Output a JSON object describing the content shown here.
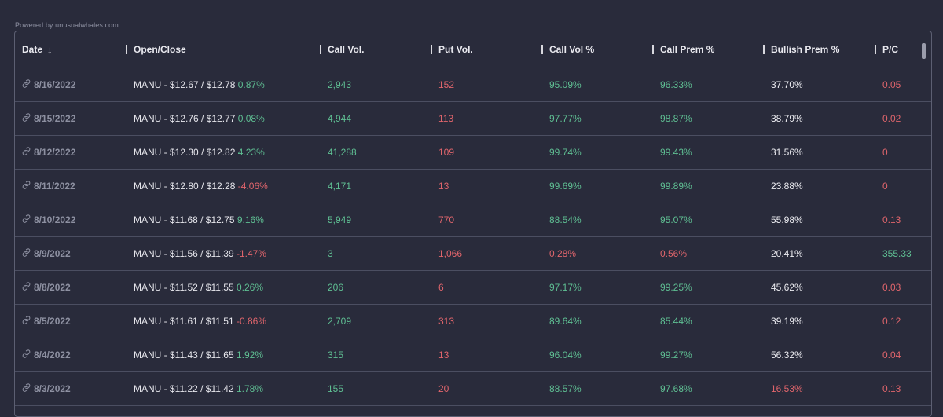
{
  "powered_by": "Powered by unusualwhales.com",
  "columns": [
    {
      "key": "date",
      "label": "Date"
    },
    {
      "key": "open_close",
      "label": "Open/Close"
    },
    {
      "key": "call_vol",
      "label": "Call Vol."
    },
    {
      "key": "put_vol",
      "label": "Put Vol."
    },
    {
      "key": "call_vol_pct",
      "label": "Call Vol %"
    },
    {
      "key": "call_prem_pct",
      "label": "Call Prem %"
    },
    {
      "key": "bullish_prem_pct",
      "label": "Bullish Prem %"
    },
    {
      "key": "pc",
      "label": "P/C"
    }
  ],
  "colors": {
    "green": "#5fbf93",
    "red": "#e0656c",
    "white": "#ececf1"
  },
  "rows": [
    {
      "date": "8/16/2022",
      "oc": "MANU - $12.67 / $12.78",
      "chg": "0.87%",
      "chg_c": "green",
      "call_vol": "2,943",
      "put_vol": "152",
      "call_vol_pct": "95.09%",
      "cvp_c": "green",
      "call_prem_pct": "96.33%",
      "cpp_c": "green",
      "bullish": "37.70%",
      "bull_c": "white",
      "pc": "0.05",
      "pc_c": "red"
    },
    {
      "date": "8/15/2022",
      "oc": "MANU - $12.76 / $12.77",
      "chg": "0.08%",
      "chg_c": "green",
      "call_vol": "4,944",
      "put_vol": "113",
      "call_vol_pct": "97.77%",
      "cvp_c": "green",
      "call_prem_pct": "98.87%",
      "cpp_c": "green",
      "bullish": "38.79%",
      "bull_c": "white",
      "pc": "0.02",
      "pc_c": "red"
    },
    {
      "date": "8/12/2022",
      "oc": "MANU - $12.30 / $12.82",
      "chg": "4.23%",
      "chg_c": "green",
      "call_vol": "41,288",
      "put_vol": "109",
      "call_vol_pct": "99.74%",
      "cvp_c": "green",
      "call_prem_pct": "99.43%",
      "cpp_c": "green",
      "bullish": "31.56%",
      "bull_c": "white",
      "pc": "0",
      "pc_c": "red"
    },
    {
      "date": "8/11/2022",
      "oc": "MANU - $12.80 / $12.28",
      "chg": "-4.06%",
      "chg_c": "red",
      "call_vol": "4,171",
      "put_vol": "13",
      "call_vol_pct": "99.69%",
      "cvp_c": "green",
      "call_prem_pct": "99.89%",
      "cpp_c": "green",
      "bullish": "23.88%",
      "bull_c": "white",
      "pc": "0",
      "pc_c": "red"
    },
    {
      "date": "8/10/2022",
      "oc": "MANU - $11.68 / $12.75",
      "chg": "9.16%",
      "chg_c": "green",
      "call_vol": "5,949",
      "put_vol": "770",
      "call_vol_pct": "88.54%",
      "cvp_c": "green",
      "call_prem_pct": "95.07%",
      "cpp_c": "green",
      "bullish": "55.98%",
      "bull_c": "white",
      "pc": "0.13",
      "pc_c": "red"
    },
    {
      "date": "8/9/2022",
      "oc": "MANU - $11.56 / $11.39",
      "chg": "-1.47%",
      "chg_c": "red",
      "call_vol": "3",
      "put_vol": "1,066",
      "call_vol_pct": "0.28%",
      "cvp_c": "red",
      "call_prem_pct": "0.56%",
      "cpp_c": "red",
      "bullish": "20.41%",
      "bull_c": "white",
      "pc": "355.33",
      "pc_c": "green"
    },
    {
      "date": "8/8/2022",
      "oc": "MANU - $11.52 / $11.55",
      "chg": "0.26%",
      "chg_c": "green",
      "call_vol": "206",
      "put_vol": "6",
      "call_vol_pct": "97.17%",
      "cvp_c": "green",
      "call_prem_pct": "99.25%",
      "cpp_c": "green",
      "bullish": "45.62%",
      "bull_c": "white",
      "pc": "0.03",
      "pc_c": "red"
    },
    {
      "date": "8/5/2022",
      "oc": "MANU - $11.61 / $11.51",
      "chg": "-0.86%",
      "chg_c": "red",
      "call_vol": "2,709",
      "put_vol": "313",
      "call_vol_pct": "89.64%",
      "cvp_c": "green",
      "call_prem_pct": "85.44%",
      "cpp_c": "green",
      "bullish": "39.19%",
      "bull_c": "white",
      "pc": "0.12",
      "pc_c": "red"
    },
    {
      "date": "8/4/2022",
      "oc": "MANU - $11.43 / $11.65",
      "chg": "1.92%",
      "chg_c": "green",
      "call_vol": "315",
      "put_vol": "13",
      "call_vol_pct": "96.04%",
      "cvp_c": "green",
      "call_prem_pct": "99.27%",
      "cpp_c": "green",
      "bullish": "56.32%",
      "bull_c": "white",
      "pc": "0.04",
      "pc_c": "red"
    },
    {
      "date": "8/3/2022",
      "oc": "MANU - $11.22 / $11.42",
      "chg": "1.78%",
      "chg_c": "green",
      "call_vol": "155",
      "put_vol": "20",
      "call_vol_pct": "88.57%",
      "cvp_c": "green",
      "call_prem_pct": "97.68%",
      "cpp_c": "green",
      "bullish": "16.53%",
      "bull_c": "red",
      "pc": "0.13",
      "pc_c": "red"
    }
  ]
}
